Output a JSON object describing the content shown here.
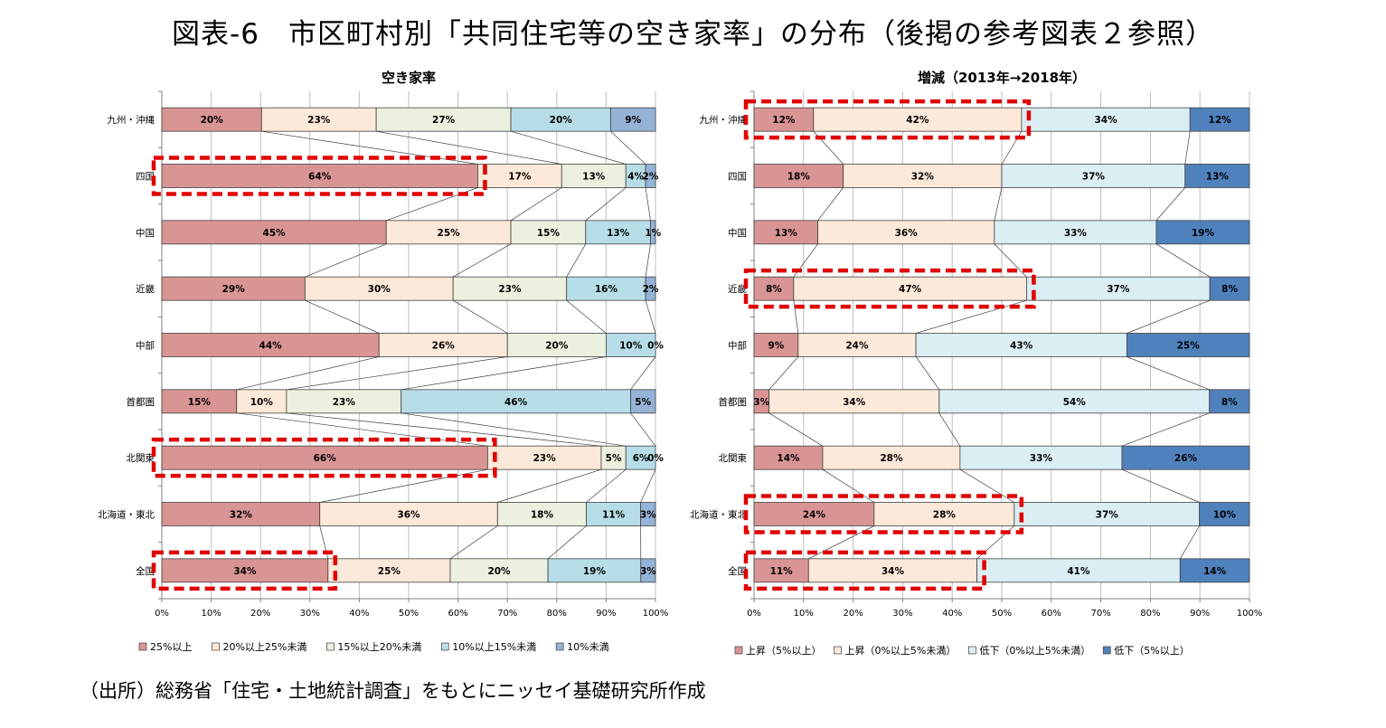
{
  "title": "図表-6　市区町村別「共同住宅等の空き家率」の分布（後掲の参考図表２参照）",
  "source": "（出所）総務省「住宅・土地統計調査」をもとにニッセイ基礎研究所作成",
  "chart_data": [
    {
      "type": "bar",
      "orientation": "horizontal",
      "stacked": "percent",
      "title": "空き家率",
      "categories": [
        "九州・沖縄",
        "四国",
        "中国",
        "近畿",
        "中部",
        "首都圏",
        "北関東",
        "北海道・東北",
        "全国"
      ],
      "xlim": [
        0,
        100
      ],
      "x_ticks": [
        "0%",
        "10%",
        "20%",
        "30%",
        "40%",
        "50%",
        "60%",
        "70%",
        "80%",
        "90%",
        "100%"
      ],
      "grid": true,
      "legend_position": "bottom",
      "highlighted": [
        "四国",
        "北関東",
        "全国"
      ],
      "series": [
        {
          "name": "25%以上",
          "color": "#d99594",
          "values": [
            20,
            64,
            45,
            29,
            44,
            15,
            66,
            32,
            34
          ]
        },
        {
          "name": "20%以上25%未満",
          "color": "#fde9d9",
          "values": [
            23,
            17,
            25,
            30,
            26,
            10,
            23,
            36,
            25
          ]
        },
        {
          "name": "15%以上20%未満",
          "color": "#ebf1de",
          "values": [
            27,
            13,
            15,
            23,
            20,
            23,
            5,
            18,
            20
          ]
        },
        {
          "name": "10%以上15%未満",
          "color": "#b7dee8",
          "values": [
            20,
            4,
            13,
            16,
            10,
            46,
            6,
            11,
            19
          ]
        },
        {
          "name": "10%未満",
          "color": "#95b3d7",
          "values": [
            9,
            2,
            1,
            2,
            0,
            5,
            0,
            3,
            3
          ]
        }
      ],
      "labels": [
        [
          "20%",
          "23%",
          "27%",
          "20%",
          "9%"
        ],
        [
          "64%",
          "17%",
          "13%",
          "4%",
          "2%"
        ],
        [
          "45%",
          "25%",
          "15%",
          "13%",
          "1%"
        ],
        [
          "29%",
          "30%",
          "23%",
          "16%",
          "2%"
        ],
        [
          "44%",
          "26%",
          "20%",
          "10%",
          "0%"
        ],
        [
          "15%",
          "10%",
          "23%",
          "46%",
          "5%"
        ],
        [
          "66%",
          "23%",
          "5%",
          "6%",
          "0%"
        ],
        [
          "32%",
          "36%",
          "18%",
          "11%",
          "3%"
        ],
        [
          "34%",
          "25%",
          "20%",
          "19%",
          "3%"
        ]
      ]
    },
    {
      "type": "bar",
      "orientation": "horizontal",
      "stacked": "percent",
      "title": "増減（2013年→2018年）",
      "categories": [
        "九州・沖縄",
        "四国",
        "中国",
        "近畿",
        "中部",
        "首都圏",
        "北関東",
        "北海道・東北",
        "全国"
      ],
      "xlim": [
        0,
        100
      ],
      "x_ticks": [
        "0%",
        "10%",
        "20%",
        "30%",
        "40%",
        "50%",
        "60%",
        "70%",
        "80%",
        "90%",
        "100%"
      ],
      "grid": true,
      "legend_position": "bottom",
      "highlighted": [
        "九州・沖縄",
        "近畿",
        "北海道・東北",
        "全国"
      ],
      "series": [
        {
          "name": "上昇（5%以上）",
          "color": "#d99594",
          "values": [
            12,
            18,
            13,
            8,
            9,
            3,
            14,
            24,
            11
          ]
        },
        {
          "name": "上昇（0%以上5%未満）",
          "color": "#fde9d9",
          "values": [
            42,
            32,
            36,
            47,
            24,
            34,
            28,
            28,
            34
          ]
        },
        {
          "name": "低下（0%以上5%未満）",
          "color": "#daeef3",
          "values": [
            34,
            37,
            33,
            37,
            43,
            54,
            33,
            37,
            41
          ]
        },
        {
          "name": "低下（5%以上）",
          "color": "#4f81bd",
          "values": [
            12,
            13,
            19,
            8,
            25,
            8,
            26,
            10,
            14
          ]
        }
      ],
      "labels": [
        [
          "12%",
          "42%",
          "34%",
          "12%"
        ],
        [
          "18%",
          "32%",
          "37%",
          "13%"
        ],
        [
          "13%",
          "36%",
          "33%",
          "19%"
        ],
        [
          "8%",
          "47%",
          "37%",
          "8%"
        ],
        [
          "9%",
          "24%",
          "43%",
          "25%"
        ],
        [
          "3%",
          "34%",
          "54%",
          "8%"
        ],
        [
          "14%",
          "28%",
          "33%",
          "26%"
        ],
        [
          "24%",
          "28%",
          "37%",
          "10%"
        ],
        [
          "11%",
          "34%",
          "41%",
          "14%"
        ]
      ]
    }
  ]
}
